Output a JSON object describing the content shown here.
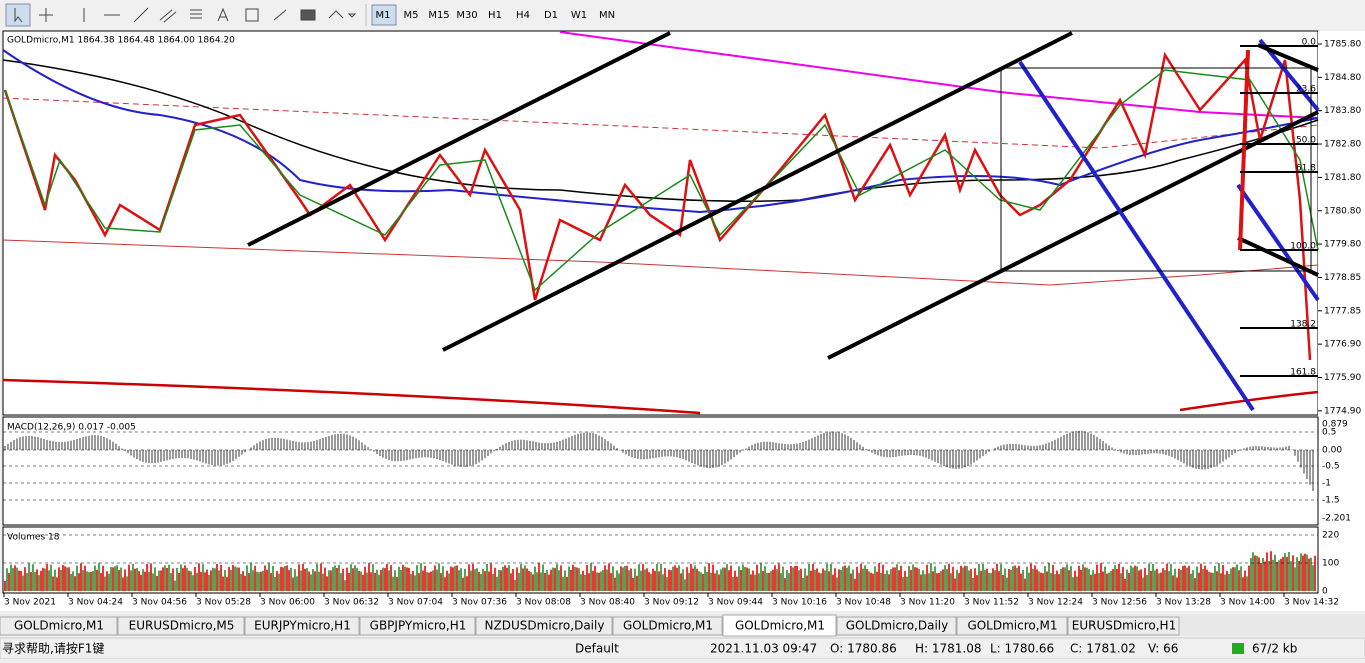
{
  "toolbar": {
    "timeframes": [
      "M1",
      "M5",
      "M15",
      "M30",
      "H1",
      "H4",
      "D1",
      "W1",
      "MN"
    ]
  },
  "chart": {
    "header": "GOLDmicro,M1  1864.38 1864.48 1864.00 1864.20",
    "price_axis": [
      "1785.80",
      "1784.80",
      "1783.80",
      "1782.80",
      "1781.80",
      "1780.80",
      "1779.80",
      "1778.85",
      "1777.85",
      "1776.90",
      "1775.90",
      "1774.90"
    ],
    "fib_levels": [
      "0.0",
      "23.6",
      "50.0",
      "61.8",
      "100.0",
      "138.2",
      "161.8"
    ]
  },
  "macd": {
    "header": "MACD(12,26,9) 0.017 -0.005",
    "axis": [
      "0.879",
      "0.5",
      "0.00",
      "-0.5",
      "-1",
      "-1.5",
      "-2.201"
    ]
  },
  "volumes": {
    "header": "Volumes 18",
    "axis": [
      "220",
      "100",
      "0"
    ]
  },
  "time_axis": [
    "3 Nov 2021",
    "3 Nov 04:24",
    "3 Nov 04:56",
    "3 Nov 05:28",
    "3 Nov 06:00",
    "3 Nov 06:32",
    "3 Nov 07:04",
    "3 Nov 07:36",
    "3 Nov 08:08",
    "3 Nov 08:40",
    "3 Nov 09:12",
    "3 Nov 09:44",
    "3 Nov 10:16",
    "3 Nov 10:48",
    "3 Nov 11:20",
    "3 Nov 11:52",
    "3 Nov 12:24",
    "3 Nov 12:56",
    "3 Nov 13:28",
    "3 Nov 14:00",
    "3 Nov 14:32"
  ],
  "tabs": [
    "GOLDmicro,M1",
    "EURUSDmicro,M5",
    "EURJPYmicro,H1",
    "GBPJPYmicro,H1",
    "NZDUSDmicro,Daily",
    "GOLDmicro,M1",
    "GOLDmicro,M1",
    "GOLDmicro,Daily",
    "GOLDmicro,M1",
    "EURUSDmicro,H1"
  ],
  "status": {
    "help": "寻求帮助,请按F1键",
    "profile": "Default",
    "time": "2021.11.03 09:47",
    "open": "O: 1780.86",
    "high": "H: 1781.08",
    "low": "L: 1780.66",
    "close": "C: 1781.02",
    "volume": "V: 66",
    "traffic": "67/2 kb"
  }
}
